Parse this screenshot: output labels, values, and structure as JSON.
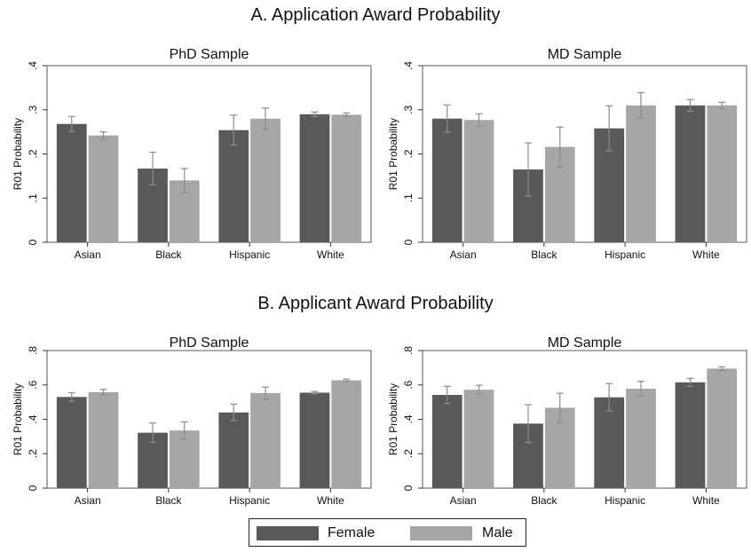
{
  "sections": [
    {
      "title": "A. Application Award Probability"
    },
    {
      "title": "B. Applicant Award Probability"
    }
  ],
  "colors": {
    "female": "#595959",
    "male": "#a6a6a6",
    "errorbar": "#8c8c8c"
  },
  "legend": [
    {
      "label": "Female"
    },
    {
      "label": "Male"
    }
  ],
  "chart_data": [
    {
      "type": "bar",
      "title": "PhD Sample",
      "ylabel": "R01 Probability",
      "ylim": [
        0,
        0.4
      ],
      "yticks": [
        "0",
        ".1",
        ".2",
        ".3",
        ".4"
      ],
      "categories": [
        "Asian",
        "Black",
        "Hispanic",
        "White"
      ],
      "series": [
        {
          "name": "Female",
          "values": [
            0.268,
            0.167,
            0.254,
            0.29
          ],
          "err_low": [
            0.251,
            0.13,
            0.22,
            0.285
          ],
          "err_high": [
            0.285,
            0.204,
            0.288,
            0.295
          ]
        },
        {
          "name": "Male",
          "values": [
            0.242,
            0.14,
            0.28,
            0.289
          ],
          "err_low": [
            0.234,
            0.113,
            0.256,
            0.285
          ],
          "err_high": [
            0.25,
            0.167,
            0.304,
            0.293
          ]
        }
      ]
    },
    {
      "type": "bar",
      "title": "MD Sample",
      "ylabel": "R01 Probability",
      "ylim": [
        0,
        0.4
      ],
      "yticks": [
        "0",
        ".1",
        ".2",
        ".3",
        ".4"
      ],
      "categories": [
        "Asian",
        "Black",
        "Hispanic",
        "White"
      ],
      "series": [
        {
          "name": "Female",
          "values": [
            0.28,
            0.165,
            0.258,
            0.31
          ],
          "err_low": [
            0.249,
            0.105,
            0.207,
            0.297
          ],
          "err_high": [
            0.311,
            0.225,
            0.309,
            0.323
          ]
        },
        {
          "name": "Male",
          "values": [
            0.277,
            0.216,
            0.31,
            0.31
          ],
          "err_low": [
            0.263,
            0.171,
            0.281,
            0.303
          ],
          "err_high": [
            0.291,
            0.261,
            0.339,
            0.317
          ]
        }
      ]
    },
    {
      "type": "bar",
      "title": "PhD Sample",
      "ylabel": "R01 Probability",
      "ylim": [
        0,
        0.8
      ],
      "yticks": [
        "0",
        ".2",
        ".4",
        ".6",
        ".8"
      ],
      "categories": [
        "Asian",
        "Black",
        "Hispanic",
        "White"
      ],
      "series": [
        {
          "name": "Female",
          "values": [
            0.53,
            0.322,
            0.44,
            0.555
          ],
          "err_low": [
            0.505,
            0.265,
            0.392,
            0.548
          ],
          "err_high": [
            0.555,
            0.379,
            0.488,
            0.562
          ]
        },
        {
          "name": "Male",
          "values": [
            0.558,
            0.335,
            0.553,
            0.627
          ],
          "err_low": [
            0.542,
            0.285,
            0.518,
            0.62
          ],
          "err_high": [
            0.574,
            0.385,
            0.588,
            0.634
          ]
        }
      ]
    },
    {
      "type": "bar",
      "title": "MD Sample",
      "ylabel": "R01 Probability",
      "ylim": [
        0,
        0.8
      ],
      "yticks": [
        "0",
        ".2",
        ".4",
        ".6",
        ".8"
      ],
      "categories": [
        "Asian",
        "Black",
        "Hispanic",
        "White"
      ],
      "series": [
        {
          "name": "Female",
          "values": [
            0.542,
            0.375,
            0.528,
            0.615
          ],
          "err_low": [
            0.492,
            0.265,
            0.448,
            0.592
          ],
          "err_high": [
            0.592,
            0.485,
            0.608,
            0.638
          ]
        },
        {
          "name": "Male",
          "values": [
            0.572,
            0.467,
            0.578,
            0.695
          ],
          "err_low": [
            0.546,
            0.382,
            0.535,
            0.685
          ],
          "err_high": [
            0.598,
            0.552,
            0.621,
            0.705
          ]
        }
      ]
    }
  ]
}
